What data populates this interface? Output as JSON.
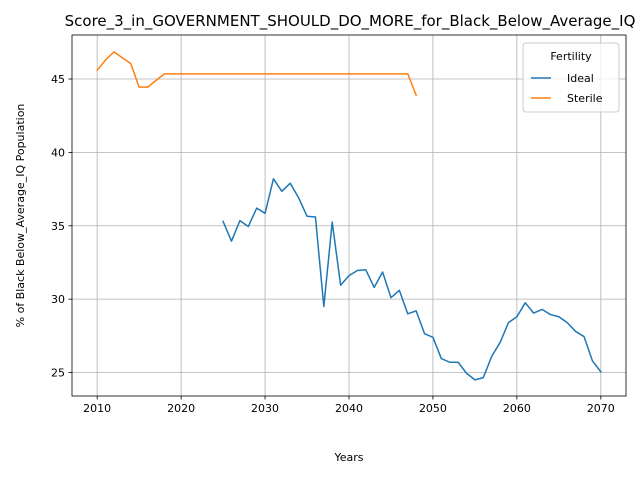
{
  "chart_data": {
    "type": "line",
    "title": "Score_3_in_GOVERNMENT_SHOULD_DO_MORE_for_Black_Below_Average_IQ",
    "xlabel": "Years",
    "ylabel": "% of Black Below_Average_IQ Population",
    "xlim": [
      2007,
      2073
    ],
    "ylim": [
      23.4,
      48.0
    ],
    "xticks": [
      2010,
      2020,
      2030,
      2040,
      2050,
      2060,
      2070
    ],
    "yticks": [
      25,
      30,
      35,
      40,
      45
    ],
    "grid": true,
    "legend": {
      "title": "Fertility",
      "placement": "top-right"
    },
    "series": [
      {
        "name": "Ideal",
        "color": "#1f77b4",
        "x": [
          2025,
          2026,
          2027,
          2028,
          2029,
          2030,
          2031,
          2032,
          2033,
          2034,
          2035,
          2036,
          2037,
          2038,
          2039,
          2040,
          2041,
          2042,
          2043,
          2044,
          2045,
          2046,
          2047,
          2048,
          2049,
          2050,
          2051,
          2052,
          2053,
          2054,
          2055,
          2056,
          2057,
          2058,
          2059,
          2060,
          2061,
          2062,
          2063,
          2064,
          2065,
          2066,
          2067,
          2068,
          2069,
          2070
        ],
        "y": [
          35.3,
          33.95,
          35.35,
          34.95,
          36.2,
          35.85,
          38.2,
          37.35,
          37.9,
          36.9,
          35.65,
          35.6,
          29.5,
          35.25,
          30.95,
          31.6,
          31.95,
          32.0,
          30.8,
          31.85,
          30.1,
          30.6,
          29.0,
          29.2,
          27.65,
          27.4,
          25.95,
          25.7,
          25.7,
          24.95,
          24.5,
          24.65,
          26.1,
          27.05,
          28.4,
          28.8,
          29.75,
          29.05,
          29.3,
          28.95,
          28.8,
          28.4,
          27.8,
          27.45,
          25.8,
          25.05
        ]
      },
      {
        "name": "Sterile",
        "color": "#ff7f0e",
        "x": [
          2010,
          2011,
          2012,
          2013,
          2014,
          2015,
          2016,
          2017,
          2018,
          2019,
          2020,
          2021,
          2022,
          2023,
          2024,
          2025,
          2026,
          2027,
          2028,
          2029,
          2030,
          2031,
          2032,
          2033,
          2034,
          2035,
          2036,
          2037,
          2038,
          2039,
          2040,
          2041,
          2042,
          2043,
          2044,
          2045,
          2046,
          2047,
          2048
        ],
        "y": [
          45.6,
          46.3,
          46.85,
          46.45,
          46.05,
          44.45,
          44.45,
          44.9,
          45.35,
          45.35,
          45.35,
          45.35,
          45.35,
          45.35,
          45.35,
          45.35,
          45.35,
          45.35,
          45.35,
          45.35,
          45.35,
          45.35,
          45.35,
          45.35,
          45.35,
          45.35,
          45.35,
          45.35,
          45.35,
          45.35,
          45.35,
          45.35,
          45.35,
          45.35,
          45.35,
          45.35,
          45.35,
          45.35,
          43.9
        ]
      }
    ]
  }
}
